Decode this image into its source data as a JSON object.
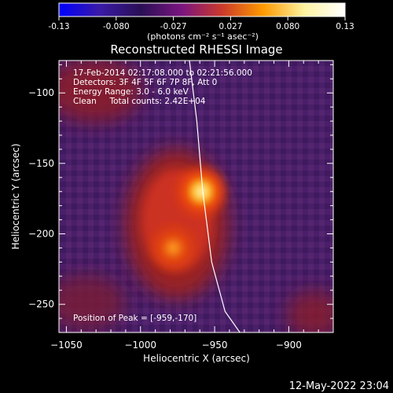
{
  "colorbar": {
    "ticks": [
      "-0.13",
      "-0.080",
      "-0.027",
      "0.027",
      "0.080",
      "0.13"
    ],
    "unit_label": "(photons cm⁻² s⁻¹ asec⁻²)",
    "stops": [
      "#0000ff",
      "#3a1aa6",
      "#2a0f55",
      "#7a1580",
      "#cc3a2a",
      "#ff9a00",
      "#fff3a0",
      "#ffffff"
    ]
  },
  "chart_data": {
    "type": "heatmap",
    "title": "Reconstructed RHESSI Image",
    "xlabel": "Heliocentric X (arcsec)",
    "ylabel": "Heliocentric Y (arcsec)",
    "xlim": [
      -1055,
      -870
    ],
    "ylim": [
      -270,
      -77
    ],
    "xticks": [
      -1050,
      -1000,
      -950,
      -900
    ],
    "yticks": [
      -100,
      -150,
      -200,
      -250
    ],
    "xtick_labels": [
      "−1050",
      "−1000",
      "−950",
      "−900"
    ],
    "ytick_labels": [
      "−100",
      "−150",
      "−200",
      "−250"
    ],
    "info_lines": [
      "17-Feb-2014 02:17:08.000 to 02:21:56.000",
      "Detectors: 3F 4F 5F 6F 7P 8F, Att 0",
      "Energy Range: 3.0 - 6.0 keV",
      "Clean     Total counts: 2.42E+04"
    ],
    "peak_label": "Position of Peak = [-959,-170]",
    "peak": {
      "x": -959,
      "y": -170,
      "value": 0.13
    },
    "secondary_source": {
      "x": -978,
      "y": -210,
      "value": 0.09
    },
    "limb_curve": [
      [
        -967,
        -77
      ],
      [
        -962,
        -120
      ],
      [
        -958,
        -170
      ],
      [
        -952,
        -220
      ],
      [
        -943,
        -255
      ],
      [
        -933,
        -270
      ]
    ]
  },
  "footer_timestamp": "12-May-2022 23:04"
}
